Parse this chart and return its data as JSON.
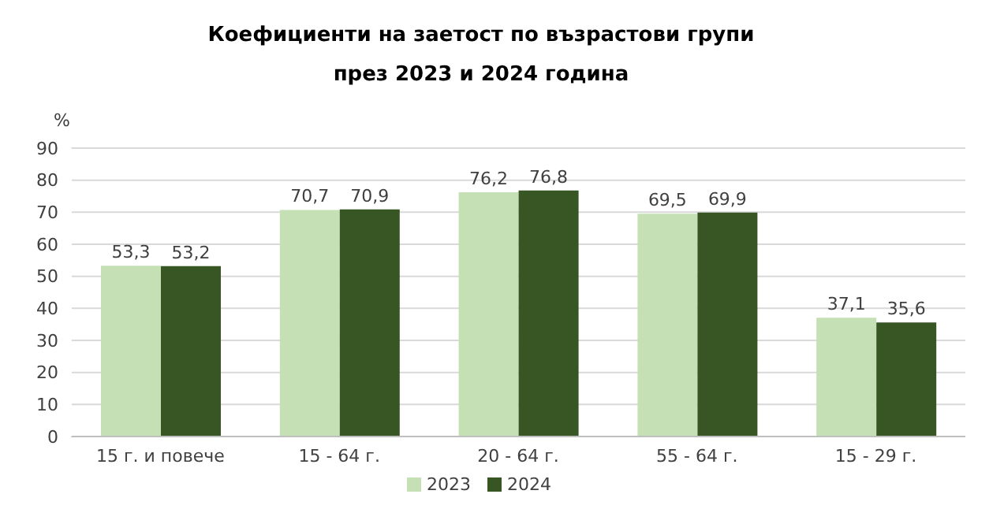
{
  "chart_data": {
    "type": "bar",
    "title": "Коефициенти на заетост по възрастови групи през 2023 и 2024 година",
    "ylabel": "%",
    "categories": [
      "15 г. и повече",
      "15 - 64 г.",
      "20 - 64 г.",
      "55 - 64 г.",
      "15 - 29 г."
    ],
    "series": [
      {
        "name": "2023",
        "color": "#c5e0b4",
        "values": [
          53.3,
          70.7,
          76.2,
          69.5,
          37.1
        ],
        "value_labels": [
          "53,3",
          "70,7",
          "76,2",
          "69,5",
          "37,1"
        ]
      },
      {
        "name": "2024",
        "color": "#375623",
        "values": [
          53.2,
          70.9,
          76.8,
          69.9,
          35.6
        ],
        "value_labels": [
          "53,2",
          "70,9",
          "76,8",
          "69,9",
          "35,6"
        ]
      }
    ],
    "ylim": [
      0,
      90
    ],
    "yticks": [
      0,
      10,
      20,
      30,
      40,
      50,
      60,
      70,
      80,
      90
    ],
    "grid": "y",
    "legend": "bottom"
  }
}
